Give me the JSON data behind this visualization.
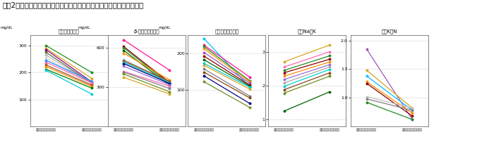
{
  "title": "『囲2』高血圧の原因となる脂質などに及ぼすチクゴ株クロレラの効果",
  "title_fontsize": 7.5,
  "subplots": [
    {
      "title": "コレステロール",
      "unit": "mg/dL",
      "ylim": [
        0,
        340
      ],
      "yticks": [
        100,
        200,
        300
      ],
      "xlabel_before": "チクゴ株クロレラ摂与前",
      "xlabel_after": "チクゴ株クロレラ摂与後",
      "lines": [
        {
          "before": 300,
          "after": 200,
          "color": "#228B22"
        },
        {
          "before": 290,
          "after": 178,
          "color": "#DAA520"
        },
        {
          "before": 285,
          "after": 165,
          "color": "#8B008B"
        },
        {
          "before": 275,
          "after": 160,
          "color": "#556B2F"
        },
        {
          "before": 265,
          "after": 158,
          "color": "#B8B8B8"
        },
        {
          "before": 255,
          "after": 152,
          "color": "#D3D3D3"
        },
        {
          "before": 245,
          "after": 168,
          "color": "#1E90FF"
        },
        {
          "before": 238,
          "after": 162,
          "color": "#FF69B4"
        },
        {
          "before": 228,
          "after": 153,
          "color": "#A0522D"
        },
        {
          "before": 222,
          "after": 148,
          "color": "#FF8C00"
        },
        {
          "before": 212,
          "after": 142,
          "color": "#008000"
        },
        {
          "before": 208,
          "after": 120,
          "color": "#00CED1"
        }
      ]
    },
    {
      "title": "β-リポプロテイン",
      "unit": "mg/dL",
      "ylim": [
        0,
        700
      ],
      "yticks": [
        300,
        600
      ],
      "xlabel_before": "チクゴ株クロレラ摂与前",
      "xlabel_after": "チクゴ株クロレラ摂与後",
      "lines": [
        {
          "before": 660,
          "after": 430,
          "color": "#FF1493"
        },
        {
          "before": 610,
          "after": 335,
          "color": "#8B0000"
        },
        {
          "before": 600,
          "after": 325,
          "color": "#228B22"
        },
        {
          "before": 580,
          "after": 315,
          "color": "#006400"
        },
        {
          "before": 560,
          "after": 355,
          "color": "#FF8C00"
        },
        {
          "before": 510,
          "after": 338,
          "color": "#A9A9A9"
        },
        {
          "before": 500,
          "after": 345,
          "color": "#8B4513"
        },
        {
          "before": 490,
          "after": 335,
          "color": "#00CED1"
        },
        {
          "before": 480,
          "after": 328,
          "color": "#000080"
        },
        {
          "before": 460,
          "after": 318,
          "color": "#9370DB"
        },
        {
          "before": 420,
          "after": 308,
          "color": "#FF69B4"
        },
        {
          "before": 415,
          "after": 290,
          "color": "#808080"
        },
        {
          "before": 400,
          "after": 265,
          "color": "#6B8E23"
        },
        {
          "before": 375,
          "after": 248,
          "color": "#DAA520"
        }
      ]
    },
    {
      "title": "トリグリセライド",
      "unit": "mg/dL",
      "ylim": [
        0,
        250
      ],
      "yticks": [
        100,
        200
      ],
      "xlabel_before": "チクゴ株クロレラ摂与前",
      "xlabel_after": "チクゴ株クロレラ摂与後",
      "lines": [
        {
          "before": 240,
          "after": 108,
          "color": "#00BFFF"
        },
        {
          "before": 222,
          "after": 135,
          "color": "#FF1493"
        },
        {
          "before": 218,
          "after": 125,
          "color": "#228B22"
        },
        {
          "before": 212,
          "after": 122,
          "color": "#FF8C00"
        },
        {
          "before": 202,
          "after": 118,
          "color": "#9B59B6"
        },
        {
          "before": 192,
          "after": 113,
          "color": "#8B0000"
        },
        {
          "before": 182,
          "after": 110,
          "color": "#006400"
        },
        {
          "before": 172,
          "after": 107,
          "color": "#00CED1"
        },
        {
          "before": 167,
          "after": 102,
          "color": "#DAA520"
        },
        {
          "before": 157,
          "after": 83,
          "color": "#808080"
        },
        {
          "before": 148,
          "after": 78,
          "color": "#8B4513"
        },
        {
          "before": 138,
          "after": 63,
          "color": "#000080"
        },
        {
          "before": 122,
          "after": 52,
          "color": "#6B8E23"
        }
      ]
    },
    {
      "title": "尿中Na／K",
      "unit": "",
      "ylim": [
        0.8,
        3.5
      ],
      "yticks": [
        1.0,
        2.0,
        3.0
      ],
      "xlabel_before": "チクゴ株クロレラ摂与前",
      "xlabel_after": "チクゴ株クロレラ摂与後",
      "lines": [
        {
          "before": 2.7,
          "after": 3.2,
          "color": "#DAA520"
        },
        {
          "before": 2.55,
          "after": 3.0,
          "color": "#FF69B4"
        },
        {
          "before": 2.45,
          "after": 2.88,
          "color": "#228B22"
        },
        {
          "before": 2.38,
          "after": 2.78,
          "color": "#8B0000"
        },
        {
          "before": 2.28,
          "after": 2.7,
          "color": "#FF8C00"
        },
        {
          "before": 2.18,
          "after": 2.62,
          "color": "#9370DB"
        },
        {
          "before": 2.08,
          "after": 2.55,
          "color": "#A9A9A9"
        },
        {
          "before": 1.98,
          "after": 2.48,
          "color": "#00CED1"
        },
        {
          "before": 1.88,
          "after": 2.38,
          "color": "#8B4513"
        },
        {
          "before": 1.78,
          "after": 2.28,
          "color": "#6B8E23"
        },
        {
          "before": 1.25,
          "after": 1.82,
          "color": "#006400"
        }
      ]
    },
    {
      "title": "尿中K／N",
      "unit": "",
      "ylim": [
        0.5,
        2.1
      ],
      "yticks": [
        1.0,
        1.5,
        2.0
      ],
      "xlabel_before": "チクゴ株クロレラ摂与前",
      "xlabel_after": "チクゴ株クロレラ摂与後",
      "lines": [
        {
          "before": 1.85,
          "after": 0.62,
          "color": "#9B59B6"
        },
        {
          "before": 1.48,
          "after": 0.82,
          "color": "#DAA520"
        },
        {
          "before": 1.38,
          "after": 0.78,
          "color": "#00BFFF"
        },
        {
          "before": 1.28,
          "after": 0.73,
          "color": "#FF8C00"
        },
        {
          "before": 1.25,
          "after": 0.68,
          "color": "#8B0000"
        },
        {
          "before": 1.02,
          "after": 0.82,
          "color": "#C0C0C0"
        },
        {
          "before": 0.98,
          "after": 0.78,
          "color": "#808080"
        },
        {
          "before": 0.92,
          "after": 0.62,
          "color": "#228B22"
        }
      ]
    }
  ]
}
